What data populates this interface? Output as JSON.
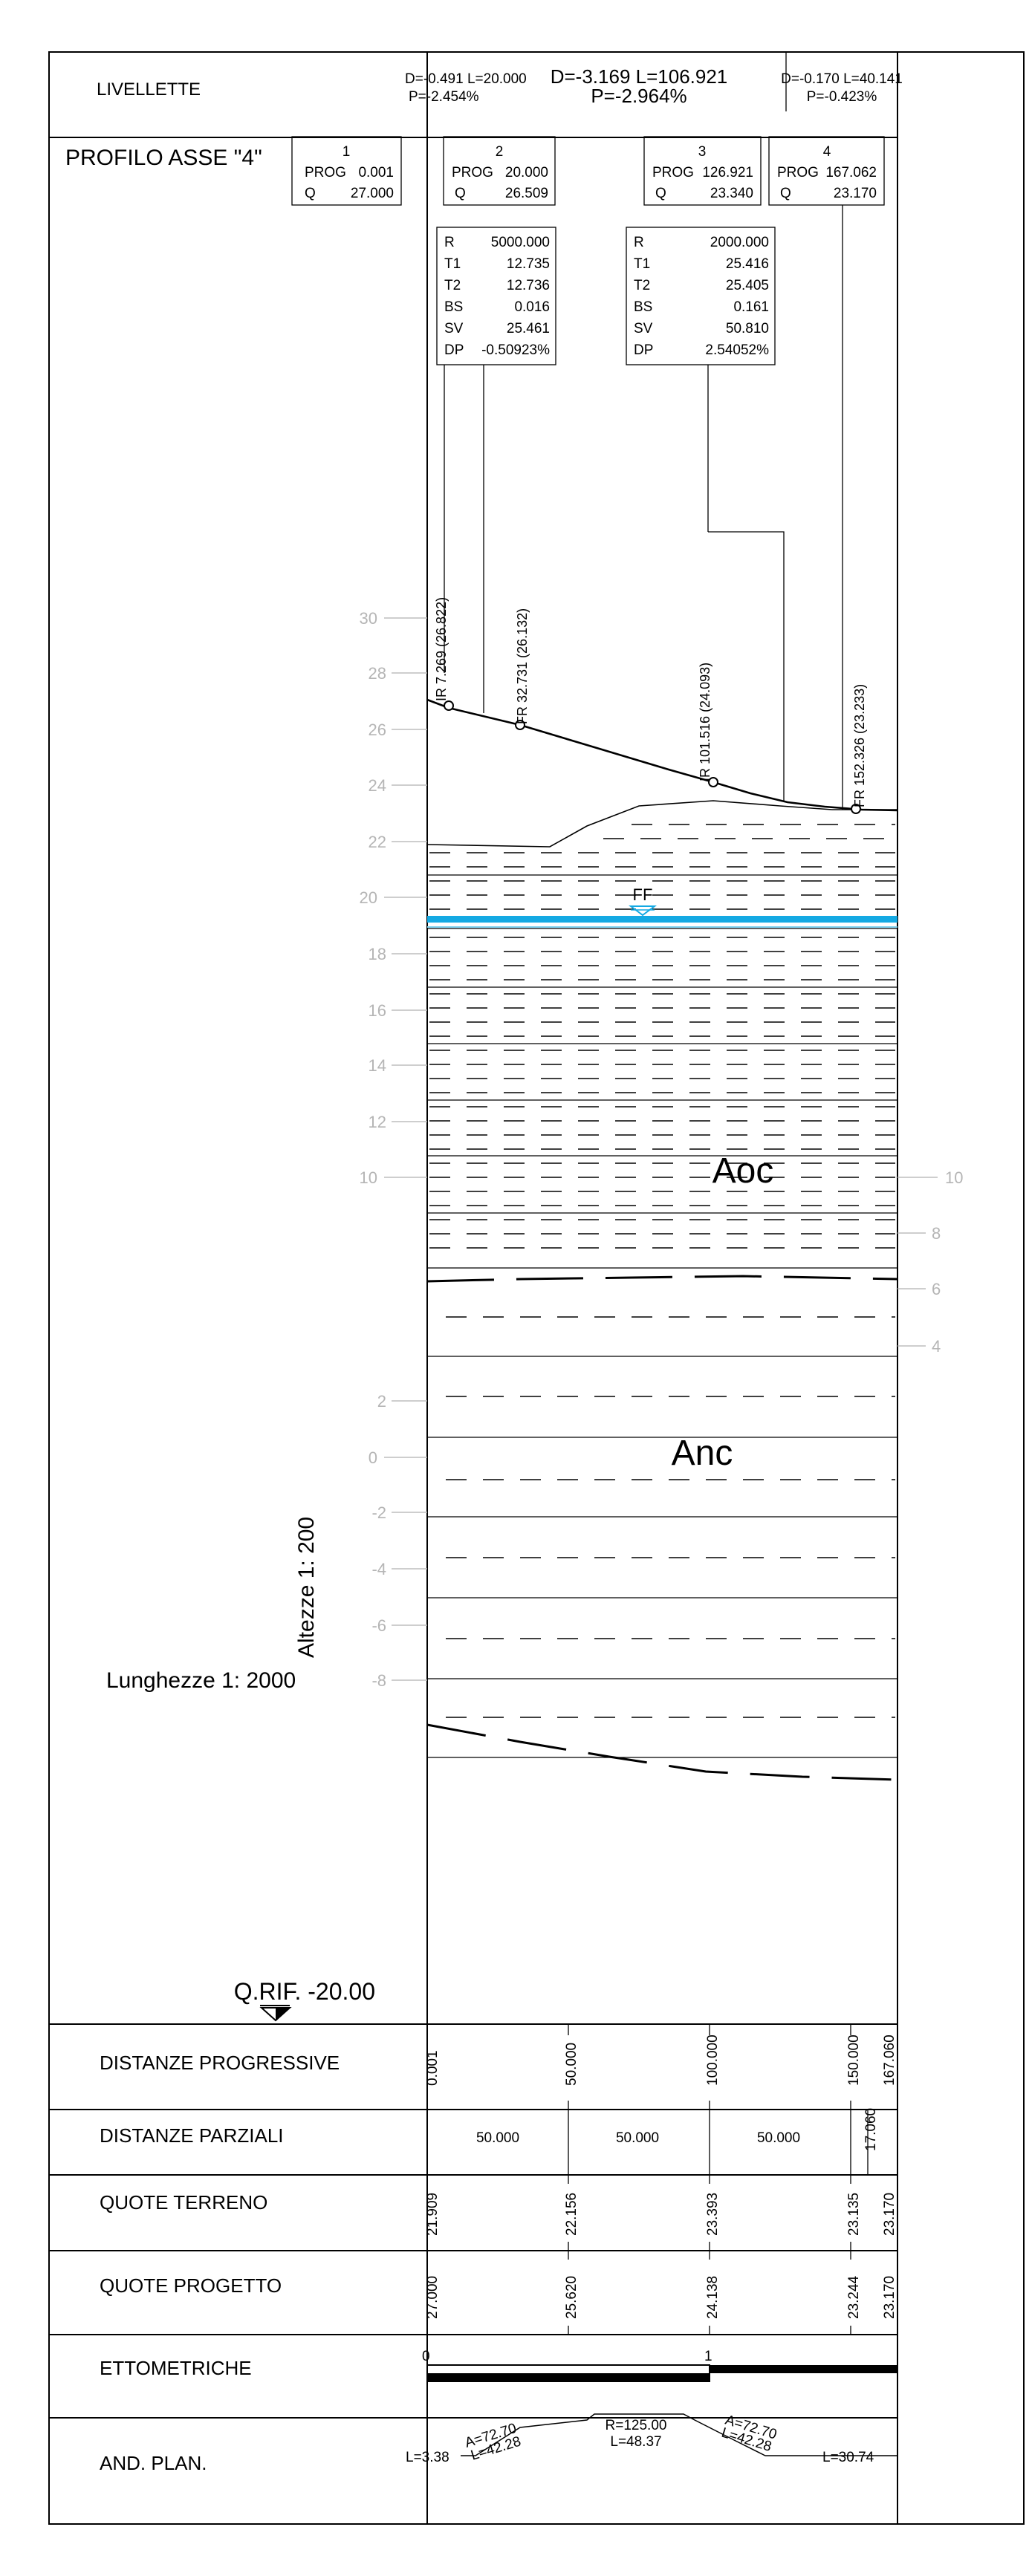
{
  "title": "PROFILO ASSE \"4\"",
  "header_row": {
    "label": "LIVELLETTE",
    "grades": [
      {
        "top": "D=-0.491 L=20.000",
        "bottom": "P=-2.454%"
      },
      {
        "top": "D=-3.169 L=106.921",
        "bottom": "P=-2.964%"
      },
      {
        "top": "D=-0.170 L=40.141",
        "bottom": "P=-0.423%"
      }
    ]
  },
  "vertices": [
    {
      "n": "1",
      "prog_label": "PROG",
      "prog": "0.001",
      "q_label": "Q",
      "q": "27.000"
    },
    {
      "n": "2",
      "prog_label": "PROG",
      "prog": "20.000",
      "q_label": "Q",
      "q": "26.509"
    },
    {
      "n": "3",
      "prog_label": "PROG",
      "prog": "126.921",
      "q_label": "Q",
      "q": "23.340"
    },
    {
      "n": "4",
      "prog_label": "PROG",
      "prog": "167.062",
      "q_label": "Q",
      "q": "23.170"
    }
  ],
  "curves": [
    {
      "rows": [
        [
          "R",
          "5000.000"
        ],
        [
          "T1",
          "12.735"
        ],
        [
          "T2",
          "12.736"
        ],
        [
          "BS",
          "0.016"
        ],
        [
          "SV",
          "25.461"
        ],
        [
          "DP",
          "-0.50923%"
        ]
      ]
    },
    {
      "rows": [
        [
          "R",
          "2000.000"
        ],
        [
          "T1",
          "25.416"
        ],
        [
          "T2",
          "25.405"
        ],
        [
          "BS",
          "0.161"
        ],
        [
          "SV",
          "50.810"
        ],
        [
          "DP",
          "2.54052%"
        ]
      ]
    }
  ],
  "point_labels": [
    {
      "text": "IR  7.269  (26.822)"
    },
    {
      "text": "FR  32.731  (26.132)"
    },
    {
      "text": "IR  101.516  (24.093)"
    },
    {
      "text": "FR  152.326  (23.233)"
    }
  ],
  "left_axis_ticks": [
    "30",
    "28",
    "26",
    "24",
    "22",
    "20",
    "18",
    "16",
    "14",
    "12",
    "10",
    "2",
    "0",
    "-2",
    "-4",
    "-6",
    "-8"
  ],
  "right_axis_ticks": [
    "10",
    "8",
    "6",
    "4"
  ],
  "water_marker": "FF",
  "layers": [
    "Aoc",
    "Anc"
  ],
  "scales": {
    "vertical": "Altezze 1: 200",
    "horizontal": "Lunghezze 1: 2000"
  },
  "reference": "Q.RIF. -20.00",
  "table": {
    "distanze_progressive": {
      "label": "DISTANZE PROGRESSIVE",
      "values": [
        "0.001",
        "50.000",
        "100.000",
        "150.000",
        "167.060"
      ]
    },
    "distanze_parziali": {
      "label": "DISTANZE PARZIALI",
      "values": [
        "50.000",
        "50.000",
        "50.000",
        "17.060"
      ]
    },
    "quote_terreno": {
      "label": "QUOTE TERRENO",
      "values": [
        "21.909",
        "22.156",
        "23.393",
        "23.135",
        "23.170"
      ]
    },
    "quote_progetto": {
      "label": "QUOTE PROGETTO",
      "values": [
        "27.000",
        "25.620",
        "24.138",
        "23.244",
        "23.170"
      ]
    },
    "ettometriche": {
      "label": "ETTOMETRICHE",
      "values": [
        "0",
        "1"
      ]
    },
    "and_plan": {
      "label": "AND. PLAN.",
      "values": [
        "L=3.38",
        "A=72.70",
        "L=42.28",
        "R=125.00",
        "L=48.37",
        "A=72.70",
        "L=42.28",
        "L=30.74"
      ]
    }
  }
}
